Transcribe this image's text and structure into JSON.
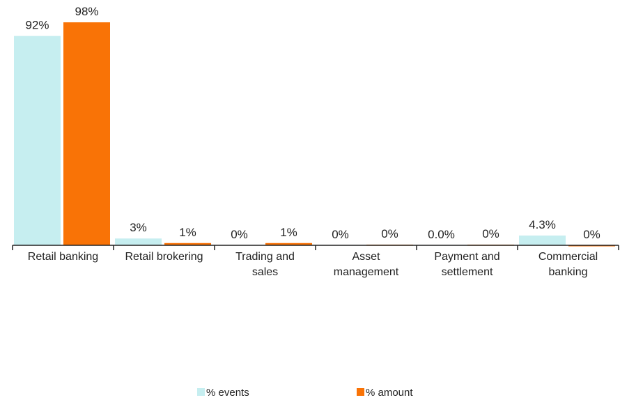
{
  "chart_data": {
    "type": "bar",
    "categories": [
      "Retail banking",
      "Retail brokering",
      "Trading and sales",
      "Asset management",
      "Payment and settlement",
      "Commercial banking"
    ],
    "series": [
      {
        "name": "% events",
        "color": "#c6eef0",
        "values": [
          92,
          3,
          0,
          0,
          0.0,
          4.3
        ],
        "value_labels": [
          "92%",
          "3%",
          "0%",
          "0%",
          "0.0%",
          "4.3%"
        ]
      },
      {
        "name": "% amount",
        "color": "#f97306",
        "values": [
          98,
          1,
          1,
          0.3,
          0.3,
          -0.3
        ],
        "value_labels": [
          "98%",
          "1%",
          "1%",
          "0%",
          "0%",
          "0%"
        ]
      }
    ],
    "ylim": [
      -1,
      100
    ],
    "grid": false,
    "legend": "bottom"
  }
}
